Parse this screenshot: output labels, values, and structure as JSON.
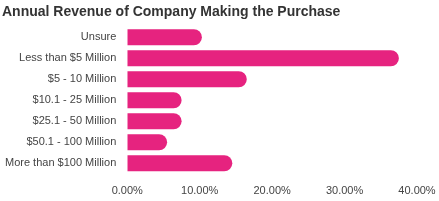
{
  "chart_data": {
    "type": "bar",
    "orientation": "horizontal",
    "title": "Annual Revenue of Company Making the Purchase",
    "categories": [
      "Unsure",
      "Less than $5 Million",
      "$5 - 10 Million",
      "$10.1 - 25 Million",
      "$25.1 - 50 Million",
      "$50.1 - 100 Million",
      "More than $100 Million"
    ],
    "values": [
      10.3,
      37.5,
      16.5,
      7.5,
      7.5,
      5.5,
      14.5
    ],
    "color": "#e6237f",
    "xlim": [
      0,
      40
    ],
    "xticks": [
      {
        "value": 0,
        "label": "0.00%"
      },
      {
        "value": 10,
        "label": "10.00%"
      },
      {
        "value": 20,
        "label": "20.00%"
      },
      {
        "value": 30,
        "label": "30.00%"
      },
      {
        "value": 40,
        "label": "40.00%"
      }
    ],
    "grid": false
  }
}
